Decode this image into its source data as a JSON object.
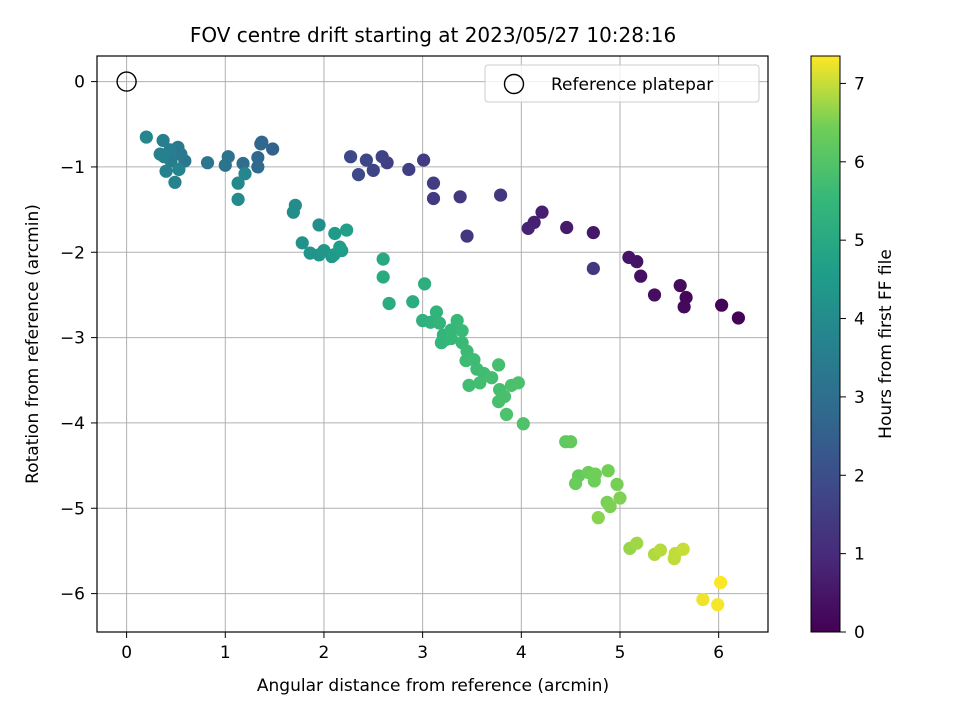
{
  "chart_data": {
    "type": "scatter",
    "title": "FOV centre drift starting at 2023/05/27 10:28:16",
    "xlabel": "Angular distance from reference (arcmin)",
    "ylabel": "Rotation from reference (arcmin)",
    "xlim": [
      -0.3,
      6.5
    ],
    "ylim": [
      -6.45,
      0.3
    ],
    "xticks": [
      "0",
      "1",
      "2",
      "3",
      "4",
      "5",
      "6"
    ],
    "yticks": [
      "0",
      "−1",
      "−2",
      "−3",
      "−4",
      "−5",
      "−6"
    ],
    "grid": true,
    "legend": {
      "position": "upper-right",
      "entries": [
        {
          "label": "Reference platepar",
          "marker": "open-circle"
        }
      ]
    },
    "reference": {
      "x": 0,
      "y": 0
    },
    "colorbar": {
      "label": "Hours from first FF file",
      "range": [
        0,
        7.35
      ],
      "ticks": [
        "0",
        "1",
        "2",
        "3",
        "4",
        "5",
        "6",
        "7"
      ],
      "colormap": "viridis"
    },
    "points": [
      [
        6.2,
        -2.77,
        0.05
      ],
      [
        6.03,
        -2.62,
        0.1
      ],
      [
        5.67,
        -2.53,
        0.15
      ],
      [
        5.65,
        -2.64,
        0.2
      ],
      [
        5.61,
        -2.39,
        0.25
      ],
      [
        5.35,
        -2.5,
        0.3
      ],
      [
        5.21,
        -2.28,
        0.35
      ],
      [
        5.17,
        -2.11,
        0.4
      ],
      [
        5.09,
        -2.06,
        0.45
      ],
      [
        4.73,
        -1.77,
        0.55
      ],
      [
        4.46,
        -1.71,
        0.6
      ],
      [
        4.21,
        -1.53,
        0.7
      ],
      [
        4.13,
        -1.65,
        0.75
      ],
      [
        4.07,
        -1.72,
        0.8
      ],
      [
        4.73,
        -2.19,
        1.3
      ],
      [
        3.79,
        -1.33,
        1.3
      ],
      [
        3.45,
        -1.81,
        1.35
      ],
      [
        3.38,
        -1.35,
        1.4
      ],
      [
        3.11,
        -1.37,
        1.45
      ],
      [
        3.11,
        -1.19,
        1.5
      ],
      [
        3.01,
        -0.92,
        1.5
      ],
      [
        2.86,
        -1.03,
        1.55
      ],
      [
        2.64,
        -0.95,
        1.6
      ],
      [
        2.59,
        -0.88,
        1.65
      ],
      [
        2.5,
        -1.04,
        1.7
      ],
      [
        2.43,
        -0.92,
        1.75
      ],
      [
        2.27,
        -0.88,
        1.8
      ],
      [
        2.35,
        -1.09,
        1.85
      ],
      [
        1.48,
        -0.79,
        2.6
      ],
      [
        1.37,
        -0.71,
        2.7
      ],
      [
        1.36,
        -0.73,
        2.75
      ],
      [
        1.33,
        -0.89,
        2.8
      ],
      [
        1.33,
        -1.0,
        2.85
      ],
      [
        1.18,
        -0.96,
        3.0
      ],
      [
        1.03,
        -0.88,
        3.1
      ],
      [
        1.0,
        -0.98,
        3.15
      ],
      [
        0.82,
        -0.95,
        3.2
      ],
      [
        0.59,
        -0.93,
        3.3
      ],
      [
        0.55,
        -0.85,
        3.35
      ],
      [
        0.52,
        -0.77,
        3.4
      ],
      [
        0.45,
        -0.93,
        3.45
      ],
      [
        0.44,
        -0.8,
        3.5
      ],
      [
        0.37,
        -0.69,
        3.55
      ],
      [
        0.34,
        -0.85,
        3.6
      ],
      [
        0.38,
        -0.88,
        3.6
      ],
      [
        0.4,
        -1.05,
        3.65
      ],
      [
        0.49,
        -1.18,
        3.7
      ],
      [
        0.53,
        -1.03,
        3.75
      ],
      [
        0.2,
        -0.65,
        3.8
      ],
      [
        1.2,
        -1.08,
        3.85
      ],
      [
        1.13,
        -1.19,
        3.9
      ],
      [
        1.13,
        -1.38,
        3.95
      ],
      [
        1.71,
        -1.45,
        4.0
      ],
      [
        1.69,
        -1.53,
        4.05
      ],
      [
        1.95,
        -1.68,
        4.1
      ],
      [
        1.78,
        -1.89,
        4.2
      ],
      [
        1.86,
        -2.01,
        4.25
      ],
      [
        1.95,
        -2.03,
        4.3
      ],
      [
        2.0,
        -1.98,
        4.35
      ],
      [
        2.08,
        -2.05,
        4.4
      ],
      [
        2.1,
        -2.03,
        4.45
      ],
      [
        2.11,
        -1.78,
        4.5
      ],
      [
        2.18,
        -1.98,
        4.55
      ],
      [
        2.16,
        -1.94,
        4.6
      ],
      [
        2.23,
        -1.74,
        4.65
      ],
      [
        2.6,
        -2.08,
        5.0
      ],
      [
        2.6,
        -2.29,
        5.05
      ],
      [
        2.66,
        -2.6,
        5.1
      ],
      [
        2.9,
        -2.58,
        5.15
      ],
      [
        3.02,
        -2.37,
        5.2
      ],
      [
        3.0,
        -2.8,
        5.25
      ],
      [
        3.08,
        -2.82,
        5.3
      ],
      [
        3.14,
        -2.7,
        5.35
      ],
      [
        3.17,
        -2.83,
        5.4
      ],
      [
        3.21,
        -2.97,
        5.42
      ],
      [
        3.19,
        -3.06,
        5.45
      ],
      [
        3.24,
        -3.02,
        5.48
      ],
      [
        3.29,
        -2.91,
        5.5
      ],
      [
        3.29,
        -3.01,
        5.52
      ],
      [
        3.35,
        -2.8,
        5.55
      ],
      [
        3.4,
        -2.92,
        5.58
      ],
      [
        3.4,
        -3.06,
        5.6
      ],
      [
        3.45,
        -3.16,
        5.62
      ],
      [
        3.44,
        -3.27,
        5.64
      ],
      [
        3.52,
        -3.26,
        5.66
      ],
      [
        3.55,
        -3.37,
        5.68
      ],
      [
        3.62,
        -3.42,
        5.7
      ],
      [
        3.47,
        -3.56,
        5.72
      ],
      [
        3.58,
        -3.53,
        5.74
      ],
      [
        3.7,
        -3.47,
        5.76
      ],
      [
        3.77,
        -3.32,
        5.78
      ],
      [
        3.78,
        -3.61,
        5.8
      ],
      [
        3.77,
        -3.75,
        5.82
      ],
      [
        3.83,
        -3.69,
        5.84
      ],
      [
        3.9,
        -3.56,
        5.86
      ],
      [
        3.97,
        -3.53,
        5.88
      ],
      [
        3.85,
        -3.9,
        5.9
      ],
      [
        4.02,
        -4.01,
        5.92
      ],
      [
        4.45,
        -4.22,
        6.2
      ],
      [
        4.5,
        -4.22,
        6.25
      ],
      [
        4.58,
        -4.62,
        6.3
      ],
      [
        4.55,
        -4.71,
        6.35
      ],
      [
        4.68,
        -4.58,
        6.4
      ],
      [
        4.74,
        -4.68,
        6.42
      ],
      [
        4.75,
        -4.6,
        6.44
      ],
      [
        4.88,
        -4.56,
        6.46
      ],
      [
        4.97,
        -4.72,
        6.48
      ],
      [
        4.87,
        -4.93,
        6.5
      ],
      [
        4.9,
        -4.98,
        6.52
      ],
      [
        5.0,
        -4.88,
        6.55
      ],
      [
        4.78,
        -5.11,
        6.6
      ],
      [
        5.1,
        -5.47,
        6.7
      ],
      [
        5.17,
        -5.41,
        6.75
      ],
      [
        5.35,
        -5.54,
        6.85
      ],
      [
        5.41,
        -5.49,
        6.9
      ],
      [
        5.56,
        -5.53,
        6.95
      ],
      [
        5.55,
        -5.59,
        6.95
      ],
      [
        5.64,
        -5.48,
        7.0
      ],
      [
        5.84,
        -6.07,
        7.25
      ],
      [
        5.99,
        -6.13,
        7.3
      ],
      [
        6.02,
        -5.87,
        7.35
      ]
    ]
  }
}
